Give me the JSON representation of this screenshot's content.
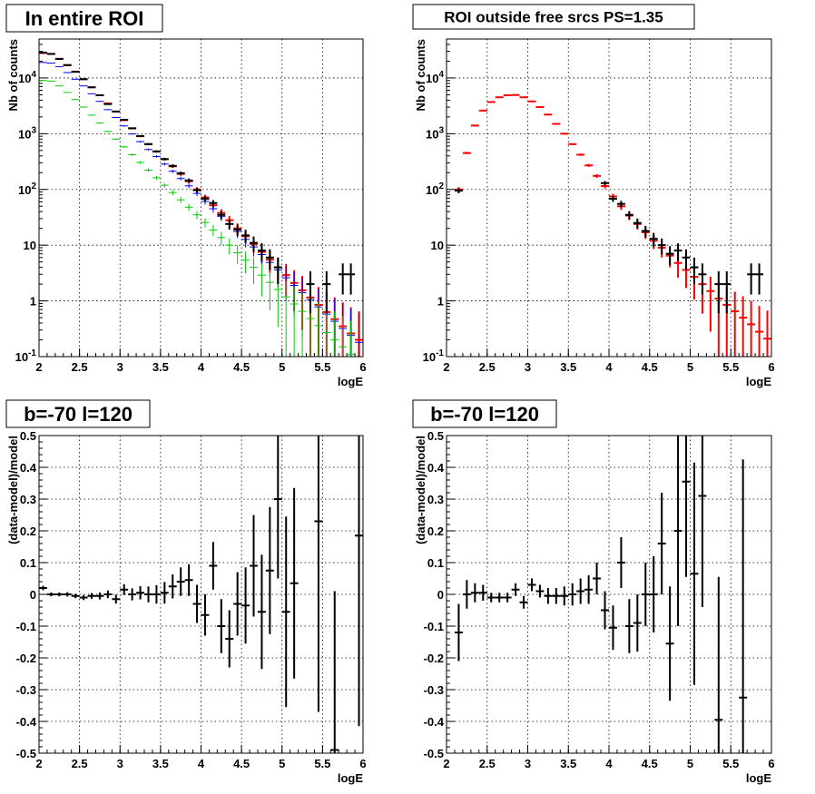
{
  "chart_data": [
    {
      "type": "scatter",
      "title": "In entire ROI",
      "xlabel": "logE",
      "ylabel": "Nb of counts",
      "xlim": [
        2,
        6
      ],
      "ylim": [
        0.1,
        50000
      ],
      "log_y": true,
      "grid": true,
      "xticks": [
        "2",
        "2.5",
        "3",
        "3.5",
        "4",
        "4.5",
        "5",
        "5.5",
        "6"
      ],
      "yticks": [
        "10^-1",
        "1",
        "10",
        "10^2",
        "10^3",
        "10^4"
      ],
      "series": [
        {
          "color": "#ff0000",
          "style": "errorbar",
          "x": [
            2.05,
            2.15,
            2.25,
            2.35,
            2.45,
            2.55,
            2.65,
            2.75,
            2.85,
            2.95,
            3.05,
            3.15,
            3.25,
            3.35,
            3.45,
            3.55,
            3.65,
            3.75,
            3.85,
            3.95,
            4.05,
            4.15,
            4.25,
            4.35,
            4.45,
            4.55,
            4.65,
            4.75,
            4.85,
            4.95,
            5.05,
            5.15,
            5.25,
            5.35,
            5.45,
            5.55,
            5.65,
            5.75,
            5.85,
            5.95
          ],
          "y": [
            28000,
            27000,
            22000,
            17000,
            13000,
            9500,
            6800,
            4900,
            3500,
            2500,
            1750,
            1250,
            900,
            650,
            480,
            350,
            260,
            190,
            140,
            100,
            72,
            52,
            38,
            28,
            20,
            14.5,
            10.5,
            7.6,
            5.5,
            4.0,
            2.9,
            2.1,
            1.55,
            1.15,
            0.85,
            0.63,
            0.47,
            0.35,
            0.26,
            0.2
          ],
          "err": [
            170,
            165,
            150,
            130,
            115,
            98,
            83,
            70,
            59,
            50,
            42,
            35,
            30,
            26,
            22,
            19,
            16,
            14,
            12,
            10,
            8.5,
            7.2,
            6.2,
            5.3,
            4.5,
            3.8,
            3.2,
            2.8,
            2.3,
            2.0,
            1.7,
            1.45,
            1.25,
            1.07,
            0.92,
            0.79,
            0.69,
            0.59,
            0.51,
            0.45
          ]
        },
        {
          "color": "#0000ff",
          "style": "errorbar",
          "x": [
            2.05,
            2.15,
            2.25,
            2.35,
            2.45,
            2.55,
            2.65,
            2.75,
            2.85,
            2.95,
            3.05,
            3.15,
            3.25,
            3.35,
            3.45,
            3.55,
            3.65,
            3.75,
            3.85,
            3.95,
            4.05,
            4.15,
            4.25,
            4.35,
            4.45,
            4.55,
            4.65,
            4.75,
            4.85,
            4.95,
            5.05,
            5.15,
            5.25,
            5.35,
            5.45,
            5.55,
            5.65,
            5.75,
            5.85,
            5.95
          ],
          "y": [
            19000,
            18500,
            16000,
            12500,
            9500,
            7200,
            5200,
            3800,
            2700,
            1950,
            1380,
            990,
            720,
            520,
            390,
            285,
            212,
            157,
            116,
            85,
            61,
            45,
            33,
            24,
            17.5,
            12.7,
            9.3,
            6.8,
            4.9,
            3.6,
            2.6,
            1.9,
            1.4,
            1.05,
            0.78,
            0.58,
            0.43,
            0.32,
            0.24,
            0.18
          ],
          "err": [
            138,
            136,
            126,
            112,
            97,
            85,
            72,
            62,
            52,
            44,
            37,
            31,
            27,
            23,
            20,
            17,
            14.6,
            12.5,
            10.8,
            9.2,
            7.8,
            6.7,
            5.7,
            4.9,
            4.2,
            3.6,
            3.05,
            2.6,
            2.2,
            1.9,
            1.6,
            1.38,
            1.18,
            1.02,
            0.88,
            0.76,
            0.66,
            0.57,
            0.49,
            0.42
          ]
        },
        {
          "color": "#00cc00",
          "style": "errorbar",
          "x": [
            2.05,
            2.15,
            2.25,
            2.35,
            2.45,
            2.55,
            2.65,
            2.75,
            2.85,
            2.95,
            3.05,
            3.15,
            3.25,
            3.35,
            3.45,
            3.55,
            3.65,
            3.75,
            3.85,
            3.95,
            4.05,
            4.15,
            4.25,
            4.35,
            4.45,
            4.55,
            4.65,
            4.75,
            4.85,
            4.95,
            5.05,
            5.15,
            5.25,
            5.35,
            5.45,
            5.55,
            5.65,
            5.75,
            5.85,
            5.95
          ],
          "y": [
            9000,
            8800,
            7200,
            5500,
            4100,
            3000,
            2150,
            1550,
            1100,
            800,
            580,
            420,
            305,
            222,
            162,
            119,
            88,
            65,
            48,
            35,
            25.5,
            18.7,
            13.7,
            10.0,
            7.3,
            5.4,
            4.0,
            2.9,
            2.15,
            1.6,
            1.18,
            0.88,
            0.65,
            0.48,
            0.36,
            0.27,
            0.2,
            0.15,
            0.11,
            0.08
          ],
          "err": [
            95,
            94,
            85,
            74,
            64,
            55,
            46,
            39,
            33,
            28,
            24,
            20,
            17.5,
            14.9,
            12.7,
            10.9,
            9.4,
            8.1,
            6.9,
            5.9,
            5.05,
            4.3,
            3.7,
            3.2,
            2.7,
            2.3,
            2.0,
            1.7,
            1.47,
            1.26,
            1.08,
            0.94,
            0.81,
            0.69,
            0.6,
            0.52,
            0.45,
            0.39,
            0.33,
            0.28
          ]
        },
        {
          "color": "#000000",
          "style": "errorbar",
          "x": [
            2.05,
            2.15,
            2.25,
            2.35,
            2.45,
            2.55,
            2.65,
            2.75,
            2.85,
            2.95,
            3.05,
            3.15,
            3.25,
            3.35,
            3.45,
            3.55,
            3.65,
            3.75,
            3.85,
            3.95,
            4.05,
            4.15,
            4.25,
            4.35,
            4.45,
            4.55,
            4.65,
            4.75,
            4.85,
            4.95,
            5.35,
            5.55,
            5.75,
            5.85
          ],
          "y": [
            28600,
            27000,
            22000,
            17000,
            12900,
            9500,
            6800,
            4900,
            3400,
            2500,
            1780,
            1250,
            910,
            650,
            480,
            350,
            265,
            195,
            145,
            97,
            68,
            57,
            35,
            24,
            19,
            15,
            11,
            8,
            6,
            4,
            2,
            2,
            3,
            3
          ],
          "err": [
            170,
            165,
            150,
            130,
            115,
            98,
            83,
            70,
            59,
            50,
            42,
            35,
            30,
            26,
            22,
            19,
            16,
            14,
            12,
            10,
            8.2,
            7.5,
            5.9,
            4.9,
            4.4,
            3.9,
            3.3,
            2.8,
            2.4,
            2.0,
            1.4,
            1.4,
            1.7,
            1.7
          ]
        }
      ]
    },
    {
      "type": "scatter",
      "title": "ROI outside free srcs PS=1.35",
      "xlabel": "logE",
      "ylabel": "Nb of counts",
      "xlim": [
        2,
        6
      ],
      "ylim": [
        0.1,
        50000
      ],
      "log_y": true,
      "grid": true,
      "xticks": [
        "2",
        "2.5",
        "3",
        "3.5",
        "4",
        "4.5",
        "5",
        "5.5",
        "6"
      ],
      "yticks": [
        "10^-1",
        "1",
        "10",
        "10^2",
        "10^3",
        "10^4"
      ],
      "series": [
        {
          "color": "#ff0000",
          "style": "errorbar",
          "x": [
            2.15,
            2.25,
            2.35,
            2.45,
            2.55,
            2.65,
            2.75,
            2.85,
            2.95,
            3.05,
            3.15,
            3.25,
            3.35,
            3.45,
            3.55,
            3.65,
            3.75,
            3.85,
            3.95,
            4.05,
            4.15,
            4.25,
            4.35,
            4.45,
            4.55,
            4.65,
            4.75,
            4.85,
            4.95,
            5.05,
            5.15,
            5.25,
            5.35,
            5.45,
            5.55,
            5.65,
            5.75,
            5.85,
            5.95
          ],
          "y": [
            100,
            450,
            1400,
            2600,
            3700,
            4500,
            4900,
            4950,
            4500,
            3800,
            3000,
            2200,
            1500,
            1000,
            650,
            420,
            270,
            175,
            115,
            75,
            50,
            34,
            24,
            17,
            12,
            9,
            6.5,
            4.8,
            3.6,
            2.7,
            2.0,
            1.5,
            1.1,
            0.85,
            0.65,
            0.5,
            0.38,
            0.28,
            0.21
          ],
          "err": [
            10,
            21,
            37,
            51,
            61,
            67,
            70,
            70,
            67,
            62,
            55,
            47,
            39,
            32,
            25,
            20.5,
            16.4,
            13.2,
            10.7,
            8.7,
            7.1,
            5.8,
            4.9,
            4.1,
            3.5,
            3.0,
            2.5,
            2.2,
            1.9,
            1.64,
            1.41,
            1.22,
            1.05,
            0.92,
            0.81,
            0.71,
            0.62,
            0.53,
            0.46
          ]
        },
        {
          "color": "#000000",
          "style": "errorbar",
          "x": [
            2.15,
            3.95,
            4.05,
            4.15,
            4.25,
            4.35,
            4.45,
            4.55,
            4.65,
            4.75,
            4.85,
            4.95,
            5.05,
            5.15,
            5.35,
            5.45,
            5.75,
            5.85
          ],
          "y": [
            95,
            130,
            68,
            55,
            35,
            25,
            18,
            13,
            10,
            7,
            8,
            6,
            4,
            3,
            2,
            2,
            3,
            3
          ],
          "err": [
            9.7,
            11.4,
            8.2,
            7.4,
            5.9,
            5,
            4.2,
            3.6,
            3.2,
            2.6,
            2.8,
            2.4,
            2.0,
            1.7,
            1.4,
            1.4,
            1.7,
            1.7
          ]
        }
      ]
    },
    {
      "type": "scatter",
      "title": "b=-70 l=120",
      "xlabel": "logE",
      "ylabel": "(data-model)/model",
      "xlim": [
        2,
        6
      ],
      "ylim": [
        -0.5,
        0.5
      ],
      "grid": true,
      "xticks": [
        "2",
        "2.5",
        "3",
        "3.5",
        "4",
        "4.5",
        "5",
        "5.5",
        "6"
      ],
      "yticks": [
        "-0.5",
        "-0.4",
        "-0.3",
        "-0.2",
        "-0.1",
        "0",
        "0.1",
        "0.2",
        "0.3",
        "0.4",
        "0.5"
      ],
      "series": [
        {
          "color": "#000000",
          "style": "errorbar",
          "x": [
            2.05,
            2.15,
            2.25,
            2.35,
            2.45,
            2.55,
            2.65,
            2.75,
            2.85,
            2.95,
            3.05,
            3.15,
            3.25,
            3.35,
            3.45,
            3.55,
            3.65,
            3.75,
            3.85,
            3.95,
            4.05,
            4.15,
            4.25,
            4.35,
            4.45,
            4.55,
            4.65,
            4.75,
            4.85,
            4.95,
            5.05,
            5.15,
            5.45,
            5.65,
            5.95
          ],
          "y": [
            0.02,
            0.0,
            0.0,
            0.0,
            -0.005,
            -0.01,
            -0.005,
            -0.005,
            0.0,
            -0.015,
            0.015,
            0.0,
            0.005,
            0.0,
            0.0,
            0.005,
            0.025,
            0.04,
            0.045,
            -0.03,
            -0.065,
            0.09,
            -0.1,
            -0.14,
            -0.03,
            -0.035,
            0.09,
            -0.055,
            0.075,
            0.3,
            -0.055,
            0.035,
            0.23,
            -0.49,
            0.185
          ],
          "err": [
            0.007,
            0.006,
            0.006,
            0.007,
            0.007,
            0.008,
            0.009,
            0.011,
            0.012,
            0.014,
            0.017,
            0.019,
            0.021,
            0.025,
            0.029,
            0.034,
            0.038,
            0.045,
            0.05,
            0.06,
            0.065,
            0.075,
            0.085,
            0.09,
            0.1,
            0.12,
            0.16,
            0.18,
            0.2,
            0.25,
            0.3,
            0.3,
            0.6,
            0.5,
            0.6
          ]
        }
      ]
    },
    {
      "type": "scatter",
      "title": "b=-70 l=120",
      "xlabel": "logE",
      "ylabel": "(data-model)/model",
      "xlim": [
        2,
        6
      ],
      "ylim": [
        -0.5,
        0.5
      ],
      "grid": true,
      "xticks": [
        "2",
        "2.5",
        "3",
        "3.5",
        "4",
        "4.5",
        "5",
        "5.5",
        "6"
      ],
      "yticks": [
        "-0.5",
        "-0.4",
        "-0.3",
        "-0.2",
        "-0.1",
        "0",
        "0.1",
        "0.2",
        "0.3",
        "0.4",
        "0.5"
      ],
      "series": [
        {
          "color": "#000000",
          "style": "errorbar",
          "x": [
            2.15,
            2.25,
            2.35,
            2.45,
            2.55,
            2.65,
            2.75,
            2.85,
            2.95,
            3.05,
            3.15,
            3.25,
            3.35,
            3.45,
            3.55,
            3.65,
            3.75,
            3.85,
            3.95,
            4.05,
            4.15,
            4.25,
            4.35,
            4.45,
            4.55,
            4.65,
            4.75,
            4.85,
            4.95,
            5.05,
            5.15,
            5.35,
            5.65
          ],
          "y": [
            -0.12,
            0.0,
            0.005,
            0.005,
            -0.01,
            -0.01,
            -0.01,
            0.015,
            -0.025,
            0.03,
            0.01,
            -0.005,
            -0.005,
            -0.005,
            0.0,
            0.01,
            0.015,
            0.05,
            -0.05,
            -0.105,
            0.1,
            -0.1,
            -0.09,
            0.0,
            0.0,
            0.16,
            -0.155,
            0.2,
            0.355,
            0.065,
            0.31,
            -0.395,
            -0.325
          ],
          "err": [
            0.09,
            0.045,
            0.03,
            0.025,
            0.015,
            0.015,
            0.015,
            0.02,
            0.02,
            0.02,
            0.02,
            0.025,
            0.025,
            0.03,
            0.035,
            0.04,
            0.045,
            0.05,
            0.06,
            0.07,
            0.08,
            0.085,
            0.09,
            0.1,
            0.12,
            0.16,
            0.18,
            0.3,
            0.3,
            0.35,
            0.35,
            0.45,
            0.75
          ]
        }
      ]
    }
  ]
}
